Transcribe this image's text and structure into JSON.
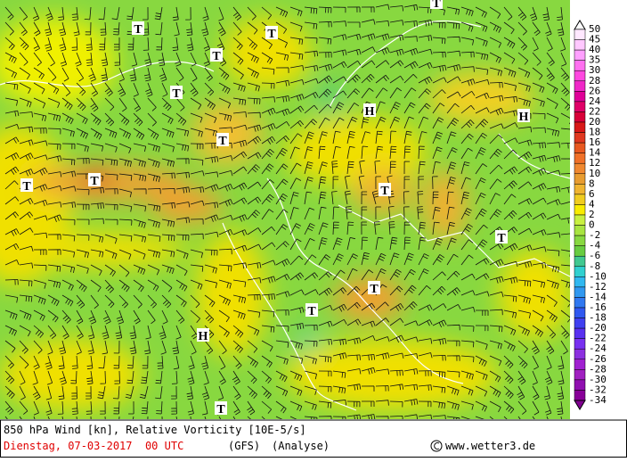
{
  "map_labels": [
    "T",
    "T",
    "T",
    "T",
    "T",
    "T",
    "T",
    "H",
    "H",
    "T",
    "T",
    "T",
    "T",
    "H",
    "T",
    "T"
  ],
  "colorbar": {
    "levels": [
      50,
      45,
      40,
      35,
      30,
      28,
      26,
      24,
      22,
      20,
      18,
      16,
      14,
      12,
      10,
      8,
      6,
      4,
      2,
      0,
      -2,
      -4,
      -6,
      -8,
      -10,
      -12,
      -14,
      -16,
      -18,
      -20,
      -22,
      -24,
      -26,
      -28,
      -30,
      -32,
      -34
    ],
    "colors": [
      "#ffe8ff",
      "#ffc8ff",
      "#ffa0ff",
      "#ff70f0",
      "#ff48e0",
      "#f028c8",
      "#e00098",
      "#e00068",
      "#d80038",
      "#d81818",
      "#e03820",
      "#e85820",
      "#f07028",
      "#f08830",
      "#e89c30",
      "#f0b430",
      "#f0cc20",
      "#f8ec00",
      "#c8f040",
      "#a8e440",
      "#88d840",
      "#68cc40",
      "#40c890",
      "#30d0d0",
      "#30b8f0",
      "#3098f0",
      "#3078f0",
      "#3058f0",
      "#4040f0",
      "#5830f0",
      "#7830f0",
      "#8c30e0",
      "#a020d0",
      "#a020c0",
      "#9010b0",
      "#880098",
      "#800090"
    ]
  },
  "footer": {
    "title": "850 hPa Wind [kn], Relative Vorticity [10E-5/s]",
    "date": "Dienstag, 07-03-2017  00 UTC",
    "model": "(GFS)",
    "run": "(Analyse)",
    "site": "www.wetter3.de"
  }
}
